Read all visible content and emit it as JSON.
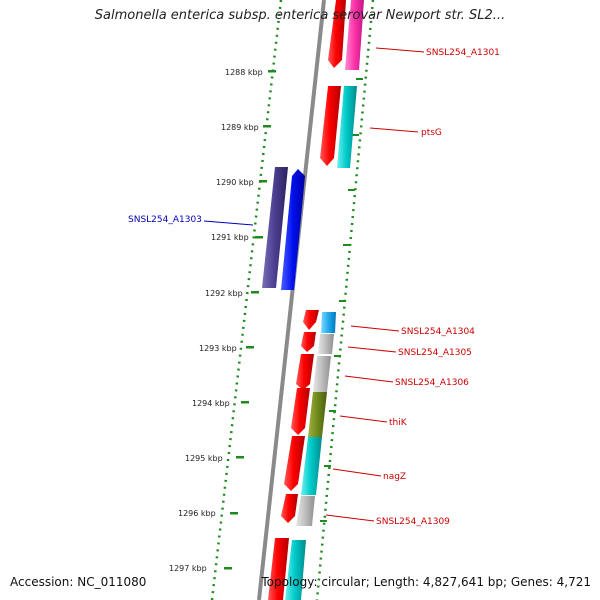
{
  "title": "Salmonella enterica subsp. enterica serovar Newport str. SL2...",
  "footer": {
    "accession": "Accession: NC_011080",
    "stats": "Topology: circular; Length: 4,827,641 bp; Genes: 4,721"
  },
  "colors": {
    "backbone": "#8a8a8a",
    "dotted_rings": "#1f8a1f",
    "label_red": "#cc0000",
    "label_blue": "#0000bb"
  },
  "scale_ticks": [
    "1288 kbp",
    "1289 kbp",
    "1290 kbp",
    "1291 kbp",
    "1292 kbp",
    "1293 kbp",
    "1294 kbp",
    "1295 kbp",
    "1296 kbp",
    "1297 kbp"
  ],
  "gene_labels": [
    {
      "text": "SNSL254_A1301",
      "color": "#cc0000"
    },
    {
      "text": "ptsG",
      "color": "#cc0000"
    },
    {
      "text": "SNSL254_A1303",
      "color": "#0000bb"
    },
    {
      "text": "SNSL254_A1304",
      "color": "#cc0000"
    },
    {
      "text": "SNSL254_A1305",
      "color": "#cc0000"
    },
    {
      "text": "SNSL254_A1306",
      "color": "#cc0000"
    },
    {
      "text": "thiK",
      "color": "#cc0000"
    },
    {
      "text": "nagZ",
      "color": "#cc0000"
    },
    {
      "text": "SNSL254_A1309",
      "color": "#cc0000"
    }
  ]
}
